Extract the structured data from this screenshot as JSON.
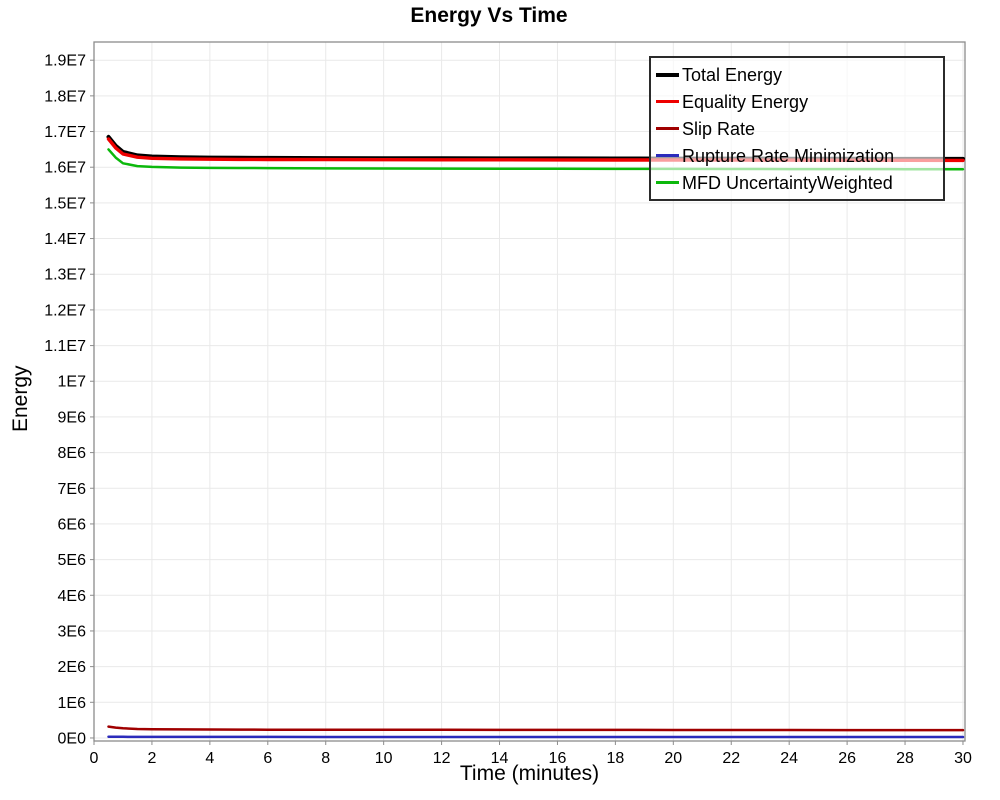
{
  "chart": {
    "title": "Energy Vs Time",
    "x_title": "Time (minutes)",
    "y_title": "Energy"
  },
  "legend": {
    "entries": [
      "Total Energy",
      "Equality Energy",
      "Slip Rate",
      "Rupture Rate Minimization",
      "MFD UncertaintyWeighted"
    ]
  },
  "colors": {
    "total_energy": "#000000",
    "equality_energy": "#ee0000",
    "slip_rate": "#a00000",
    "rupture_rate_minimization": "#2b2bbb",
    "mfd_uncertainty_weighted": "#0cb80c",
    "gridline": "#e9e9e9",
    "plot_border": "#8c8c8c"
  },
  "chart_data": {
    "type": "line",
    "title": "Energy Vs Time",
    "xlabel": "Time (minutes)",
    "ylabel": "Energy",
    "grid": true,
    "legend_position": "top-right-inside",
    "x_axis": {
      "label": "Time (minutes)",
      "lim": [
        0,
        30.07
      ],
      "tick_values": [
        0,
        2,
        4,
        6,
        8,
        10,
        12,
        14,
        16,
        18,
        20,
        22,
        24,
        26,
        28,
        30
      ],
      "tick_labels": [
        "0",
        "2",
        "4",
        "6",
        "8",
        "10",
        "12",
        "14",
        "16",
        "18",
        "20",
        "22",
        "24",
        "26",
        "28",
        "30"
      ]
    },
    "y_axis": {
      "label": "Energy",
      "lim": [
        -85000,
        19510000
      ],
      "tick_values": [
        0,
        1000000,
        2000000,
        3000000,
        4000000,
        5000000,
        6000000,
        7000000,
        8000000,
        9000000,
        10000000,
        11000000,
        12000000,
        13000000,
        14000000,
        15000000,
        16000000,
        17000000,
        18000000,
        19000000
      ],
      "tick_labels": [
        "0E0",
        "1E6",
        "2E6",
        "3E6",
        "4E6",
        "5E6",
        "6E6",
        "7E6",
        "8E6",
        "9E6",
        "1E7",
        "1.1E7",
        "1.2E7",
        "1.3E7",
        "1.4E7",
        "1.5E7",
        "1.6E7",
        "1.7E7",
        "1.8E7",
        "1.9E7"
      ]
    },
    "x": [
      0.5,
      0.75,
      1,
      1.5,
      2,
      3,
      4,
      5,
      6,
      8,
      10,
      12,
      14,
      16,
      18,
      20,
      22,
      24,
      26,
      28,
      30
    ],
    "series": [
      {
        "name": "Total Energy",
        "color": "#000000",
        "line_width": 4,
        "values": [
          16850000,
          16600000,
          16430000,
          16330000,
          16300000,
          16280000,
          16270000,
          16265000,
          16260000,
          16255000,
          16252000,
          16250000,
          16248000,
          16246000,
          16244000,
          16242000,
          16240000,
          16238000,
          16236000,
          16234000,
          16232000
        ]
      },
      {
        "name": "Equality Energy",
        "color": "#ee0000",
        "line_width": 3.4,
        "values": [
          16790000,
          16540000,
          16370000,
          16280000,
          16250000,
          16232000,
          16224000,
          16220000,
          16217000,
          16213000,
          16211000,
          16209000,
          16207000,
          16205000,
          16203000,
          16201000,
          16199000,
          16197000,
          16195000,
          16193000,
          16191000
        ]
      },
      {
        "name": "Slip Rate",
        "color": "#a00000",
        "line_width": 2.5,
        "values": [
          320000,
          290000,
          270000,
          252000,
          245000,
          240000,
          237000,
          235000,
          233000,
          231000,
          229000,
          228000,
          227000,
          226000,
          225000,
          224000,
          223000,
          222000,
          221000,
          220000,
          220000
        ]
      },
      {
        "name": "Rupture Rate Minimization",
        "color": "#2b2bbb",
        "line_width": 2.5,
        "values": [
          35000,
          33000,
          32000,
          31000,
          30000,
          30000,
          29000,
          29000,
          29000,
          28000,
          28000,
          28000,
          28000,
          28000,
          27000,
          27000,
          27000,
          27000,
          27000,
          27000,
          27000
        ]
      },
      {
        "name": "MFD UncertaintyWeighted",
        "color": "#0cb80c",
        "line_width": 2.5,
        "values": [
          16500000,
          16270000,
          16110000,
          16030000,
          16010000,
          15990000,
          15982000,
          15978000,
          15974000,
          15968000,
          15964000,
          15961000,
          15958000,
          15956000,
          15954000,
          15952000,
          15950000,
          15948000,
          15946000,
          15944000,
          15942000
        ]
      }
    ]
  }
}
